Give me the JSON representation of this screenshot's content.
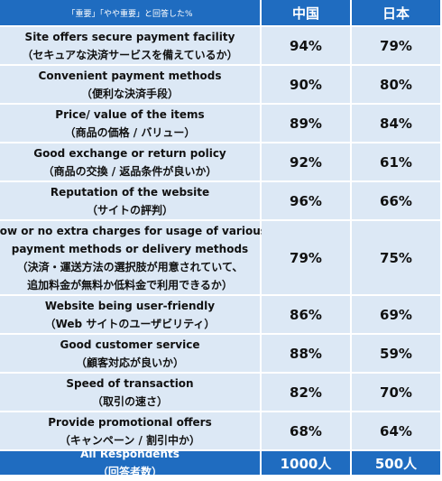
{
  "header": [
    "「重要」「やや重要」と回答した%",
    "中国",
    "日本"
  ],
  "rows": [
    {
      "label": [
        "Site offers secure payment facility",
        "（セキュアな決済サービスを備えているか）"
      ],
      "values": [
        "94%",
        "79%"
      ]
    },
    {
      "label": [
        "Convenient payment methods",
        "（便利な決済手段）"
      ],
      "values": [
        "90%",
        "80%"
      ]
    },
    {
      "label": [
        "Price/ value of the items",
        "（商品の価格 / バリュー）"
      ],
      "values": [
        "89%",
        "84%"
      ]
    },
    {
      "label": [
        "Good exchange or return policy",
        "（商品の交換 / 返品条件が良いか）"
      ],
      "values": [
        "92%",
        "61%"
      ]
    },
    {
      "label": [
        "Reputation of the website",
        "（サイトの評判）"
      ],
      "values": [
        "96%",
        "66%"
      ]
    },
    {
      "label": [
        "Low or no extra charges for usage of various",
        "payment methods or delivery methods",
        "（決済・運送方法の選択肢が用意されていて、",
        "追加料金が無料か低料金で利用できるか）"
      ],
      "values": [
        "79%",
        "75%"
      ]
    },
    {
      "label": [
        "Website being user-friendly",
        "（Web サイトのユーザビリティ）"
      ],
      "values": [
        "86%",
        "69%"
      ]
    },
    {
      "label": [
        "Good customer service",
        "（顧客対応が良いか）"
      ],
      "values": [
        "88%",
        "59%"
      ]
    },
    {
      "label": [
        "Speed of transaction",
        "（取引の速さ）"
      ],
      "values": [
        "82%",
        "70%"
      ]
    },
    {
      "label": [
        "Provide promotional offers",
        "（キャンペーン / 割引中か）"
      ],
      "values": [
        "68%",
        "64%"
      ]
    }
  ],
  "footer": {
    "label": [
      "All Respondents",
      "（回答者数）"
    ],
    "values": [
      "1000人",
      "500人"
    ]
  }
}
